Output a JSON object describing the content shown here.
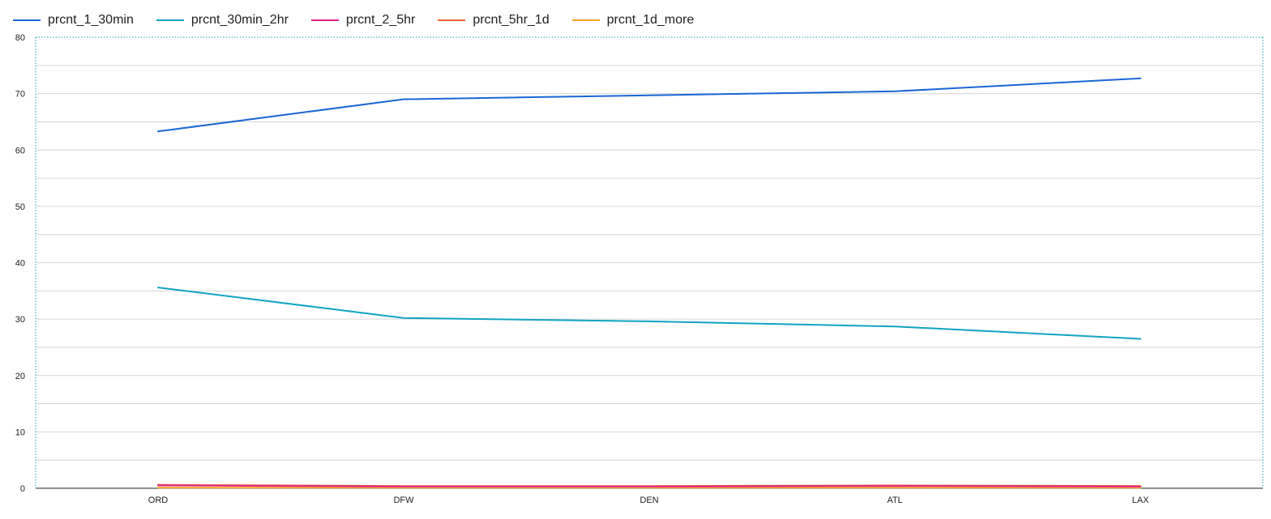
{
  "chart_data": {
    "type": "line",
    "categories": [
      "ORD",
      "DFW",
      "DEN",
      "ATL",
      "LAX"
    ],
    "ylim": [
      0,
      80
    ],
    "yticks": [
      0,
      10,
      20,
      30,
      40,
      50,
      60,
      70,
      80
    ],
    "grid": true,
    "legend_position": "top-left",
    "series": [
      {
        "name": "prcnt_1_30min",
        "color": "#1a66d4",
        "values": [
          63.3,
          69.0,
          69.7,
          70.4,
          72.7
        ]
      },
      {
        "name": "prcnt_30min_2hr",
        "color": "#12a3c4",
        "values": [
          35.6,
          30.2,
          29.6,
          28.7,
          26.5
        ]
      },
      {
        "name": "prcnt_2_5hr",
        "color": "#e0258a",
        "values": [
          0.5,
          0.3,
          0.3,
          0.4,
          0.3
        ]
      },
      {
        "name": "prcnt_5hr_1d",
        "color": "#f4683a",
        "values": [
          0.6,
          0.4,
          0.4,
          0.5,
          0.4
        ]
      },
      {
        "name": "prcnt_1d_more",
        "color": "#f6a623",
        "values": [
          0.1,
          0.1,
          0.1,
          0.1,
          0.1
        ]
      }
    ]
  }
}
